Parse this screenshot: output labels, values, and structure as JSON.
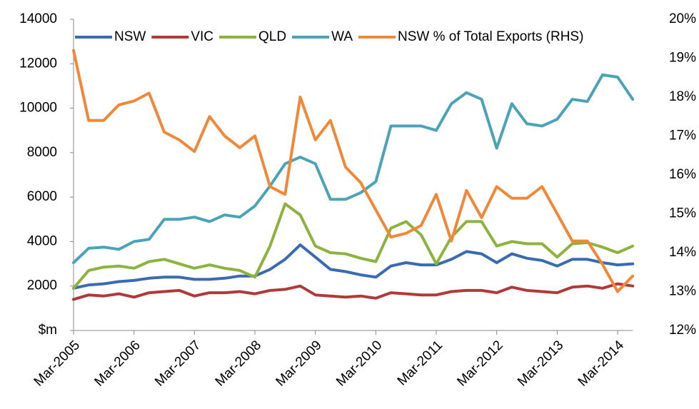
{
  "chart_data": {
    "type": "line",
    "categories": [
      "Mar-2005",
      null,
      null,
      null,
      "Mar-2006",
      null,
      null,
      null,
      "Mar-2007",
      null,
      null,
      null,
      "Mar-2008",
      null,
      null,
      null,
      "Mar-2009",
      null,
      null,
      null,
      "Mar-2010",
      null,
      null,
      null,
      "Mar-2011",
      null,
      null,
      null,
      "Mar-2012",
      null,
      null,
      null,
      "Mar-2013",
      null,
      null,
      null,
      "Mar-2014",
      null
    ],
    "series": [
      {
        "name": "NSW",
        "color": "#3a6bb0",
        "values": [
          1900,
          2050,
          2100,
          2200,
          2250,
          2350,
          2400,
          2400,
          2300,
          2300,
          2350,
          2450,
          2450,
          2750,
          3200,
          3850,
          3300,
          2750,
          2650,
          2500,
          2400,
          2900,
          3050,
          2950,
          2950,
          3200,
          3550,
          3450,
          3050,
          3450,
          3250,
          3150,
          2900,
          3200,
          3200,
          3050,
          2950,
          3000
        ]
      },
      {
        "name": "VIC",
        "color": "#b03a3a",
        "values": [
          1400,
          1600,
          1550,
          1650,
          1500,
          1700,
          1750,
          1800,
          1550,
          1700,
          1700,
          1750,
          1650,
          1800,
          1850,
          2000,
          1600,
          1550,
          1500,
          1550,
          1450,
          1700,
          1650,
          1600,
          1600,
          1750,
          1800,
          1800,
          1700,
          1950,
          1800,
          1750,
          1700,
          1950,
          2000,
          1900,
          2100,
          2000
        ]
      },
      {
        "name": "QLD",
        "color": "#8db33e",
        "values": [
          1900,
          2700,
          2850,
          2900,
          2800,
          3100,
          3200,
          3000,
          2800,
          2950,
          2800,
          2700,
          2400,
          3800,
          5700,
          5200,
          3800,
          3500,
          3450,
          3250,
          3100,
          4600,
          4900,
          4300,
          3000,
          4200,
          4900,
          4900,
          3800,
          4000,
          3900,
          3900,
          3300,
          3900,
          3950,
          3750,
          3500,
          3800
        ]
      },
      {
        "name": "WA",
        "color": "#4ba3b8",
        "values": [
          3050,
          3700,
          3750,
          3650,
          4000,
          4100,
          5000,
          5000,
          5100,
          4900,
          5200,
          5100,
          5600,
          6500,
          7500,
          7800,
          7500,
          5900,
          5900,
          6200,
          6700,
          9200,
          9200,
          9200,
          9000,
          10200,
          10700,
          10400,
          8200,
          10200,
          9300,
          9200,
          9500,
          10400,
          10300,
          11500,
          11400,
          10400
        ]
      },
      {
        "name": "NSW % of Total Exports (RHS)",
        "color": "#f0883a",
        "axis": "y2",
        "values": [
          19.2,
          17.4,
          17.4,
          17.8,
          17.9,
          18.1,
          17.1,
          16.9,
          16.6,
          17.5,
          17.0,
          16.7,
          17.0,
          15.7,
          15.5,
          18.0,
          16.9,
          17.4,
          16.2,
          15.8,
          15.1,
          14.4,
          14.5,
          14.7,
          15.5,
          14.3,
          15.6,
          14.9,
          15.7,
          15.4,
          15.4,
          15.7,
          15.0,
          14.3,
          14.3,
          13.7,
          13.0,
          13.4
        ]
      }
    ],
    "ylim": [
      0,
      14000
    ],
    "yticks": [
      {
        "value": 0,
        "label": "$m"
      },
      2000,
      4000,
      6000,
      8000,
      10000,
      12000,
      14000
    ],
    "y2lim": [
      12,
      20
    ],
    "y2ticks": [
      {
        "value": 12,
        "label": "12%"
      },
      {
        "value": 13,
        "label": "13%"
      },
      {
        "value": 14,
        "label": "14%"
      },
      {
        "value": 15,
        "label": "15%"
      },
      {
        "value": 16,
        "label": "16%"
      },
      {
        "value": 17,
        "label": "17%"
      },
      {
        "value": 18,
        "label": "18%"
      },
      {
        "value": 19,
        "label": "19%"
      },
      {
        "value": 20,
        "label": "20%"
      }
    ],
    "grid": false,
    "legend": "top"
  }
}
